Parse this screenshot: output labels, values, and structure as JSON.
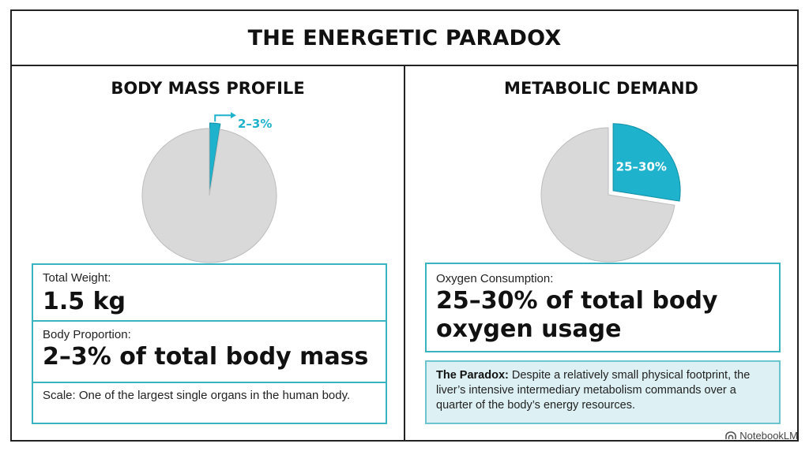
{
  "title": "THE ENERGETIC PARADOX",
  "left_panel": {
    "title": "BODY MASS PROFILE",
    "weight_label": "Total Weight:",
    "weight_value": "1.5 kg",
    "proportion_label": "Body Proportion:",
    "proportion_value": "2–3% of total body mass",
    "scale_label": "Scale:",
    "scale_text": "One of the largest single organs in the human body."
  },
  "right_panel": {
    "title": "METABOLIC DEMAND",
    "oxygen_label": "Oxygen Consumption:",
    "oxygen_value": "25–30% of total body oxygen usage",
    "paradox_label": "The Paradox:",
    "paradox_text": "Despite a relatively small physical footprint, the liver’s intensive intermediary metabolism commands over a quarter of the body’s energy resources."
  },
  "brand": "NotebookLM",
  "colors": {
    "accent": "#1fb2cc",
    "rest": "#d9d9d9",
    "border": "#3bb4c1",
    "note_bg": "#ddf0f3"
  },
  "chart_data": [
    {
      "type": "pie",
      "title": "BODY MASS PROFILE",
      "slices": [
        {
          "value": 2.5,
          "label": "2–3%",
          "highlight": true
        },
        {
          "value": 97.5,
          "label": ""
        }
      ]
    },
    {
      "type": "pie",
      "title": "METABOLIC DEMAND",
      "slices": [
        {
          "value": 27.5,
          "label": "25–30%",
          "highlight": true
        },
        {
          "value": 72.5,
          "label": ""
        }
      ]
    }
  ]
}
